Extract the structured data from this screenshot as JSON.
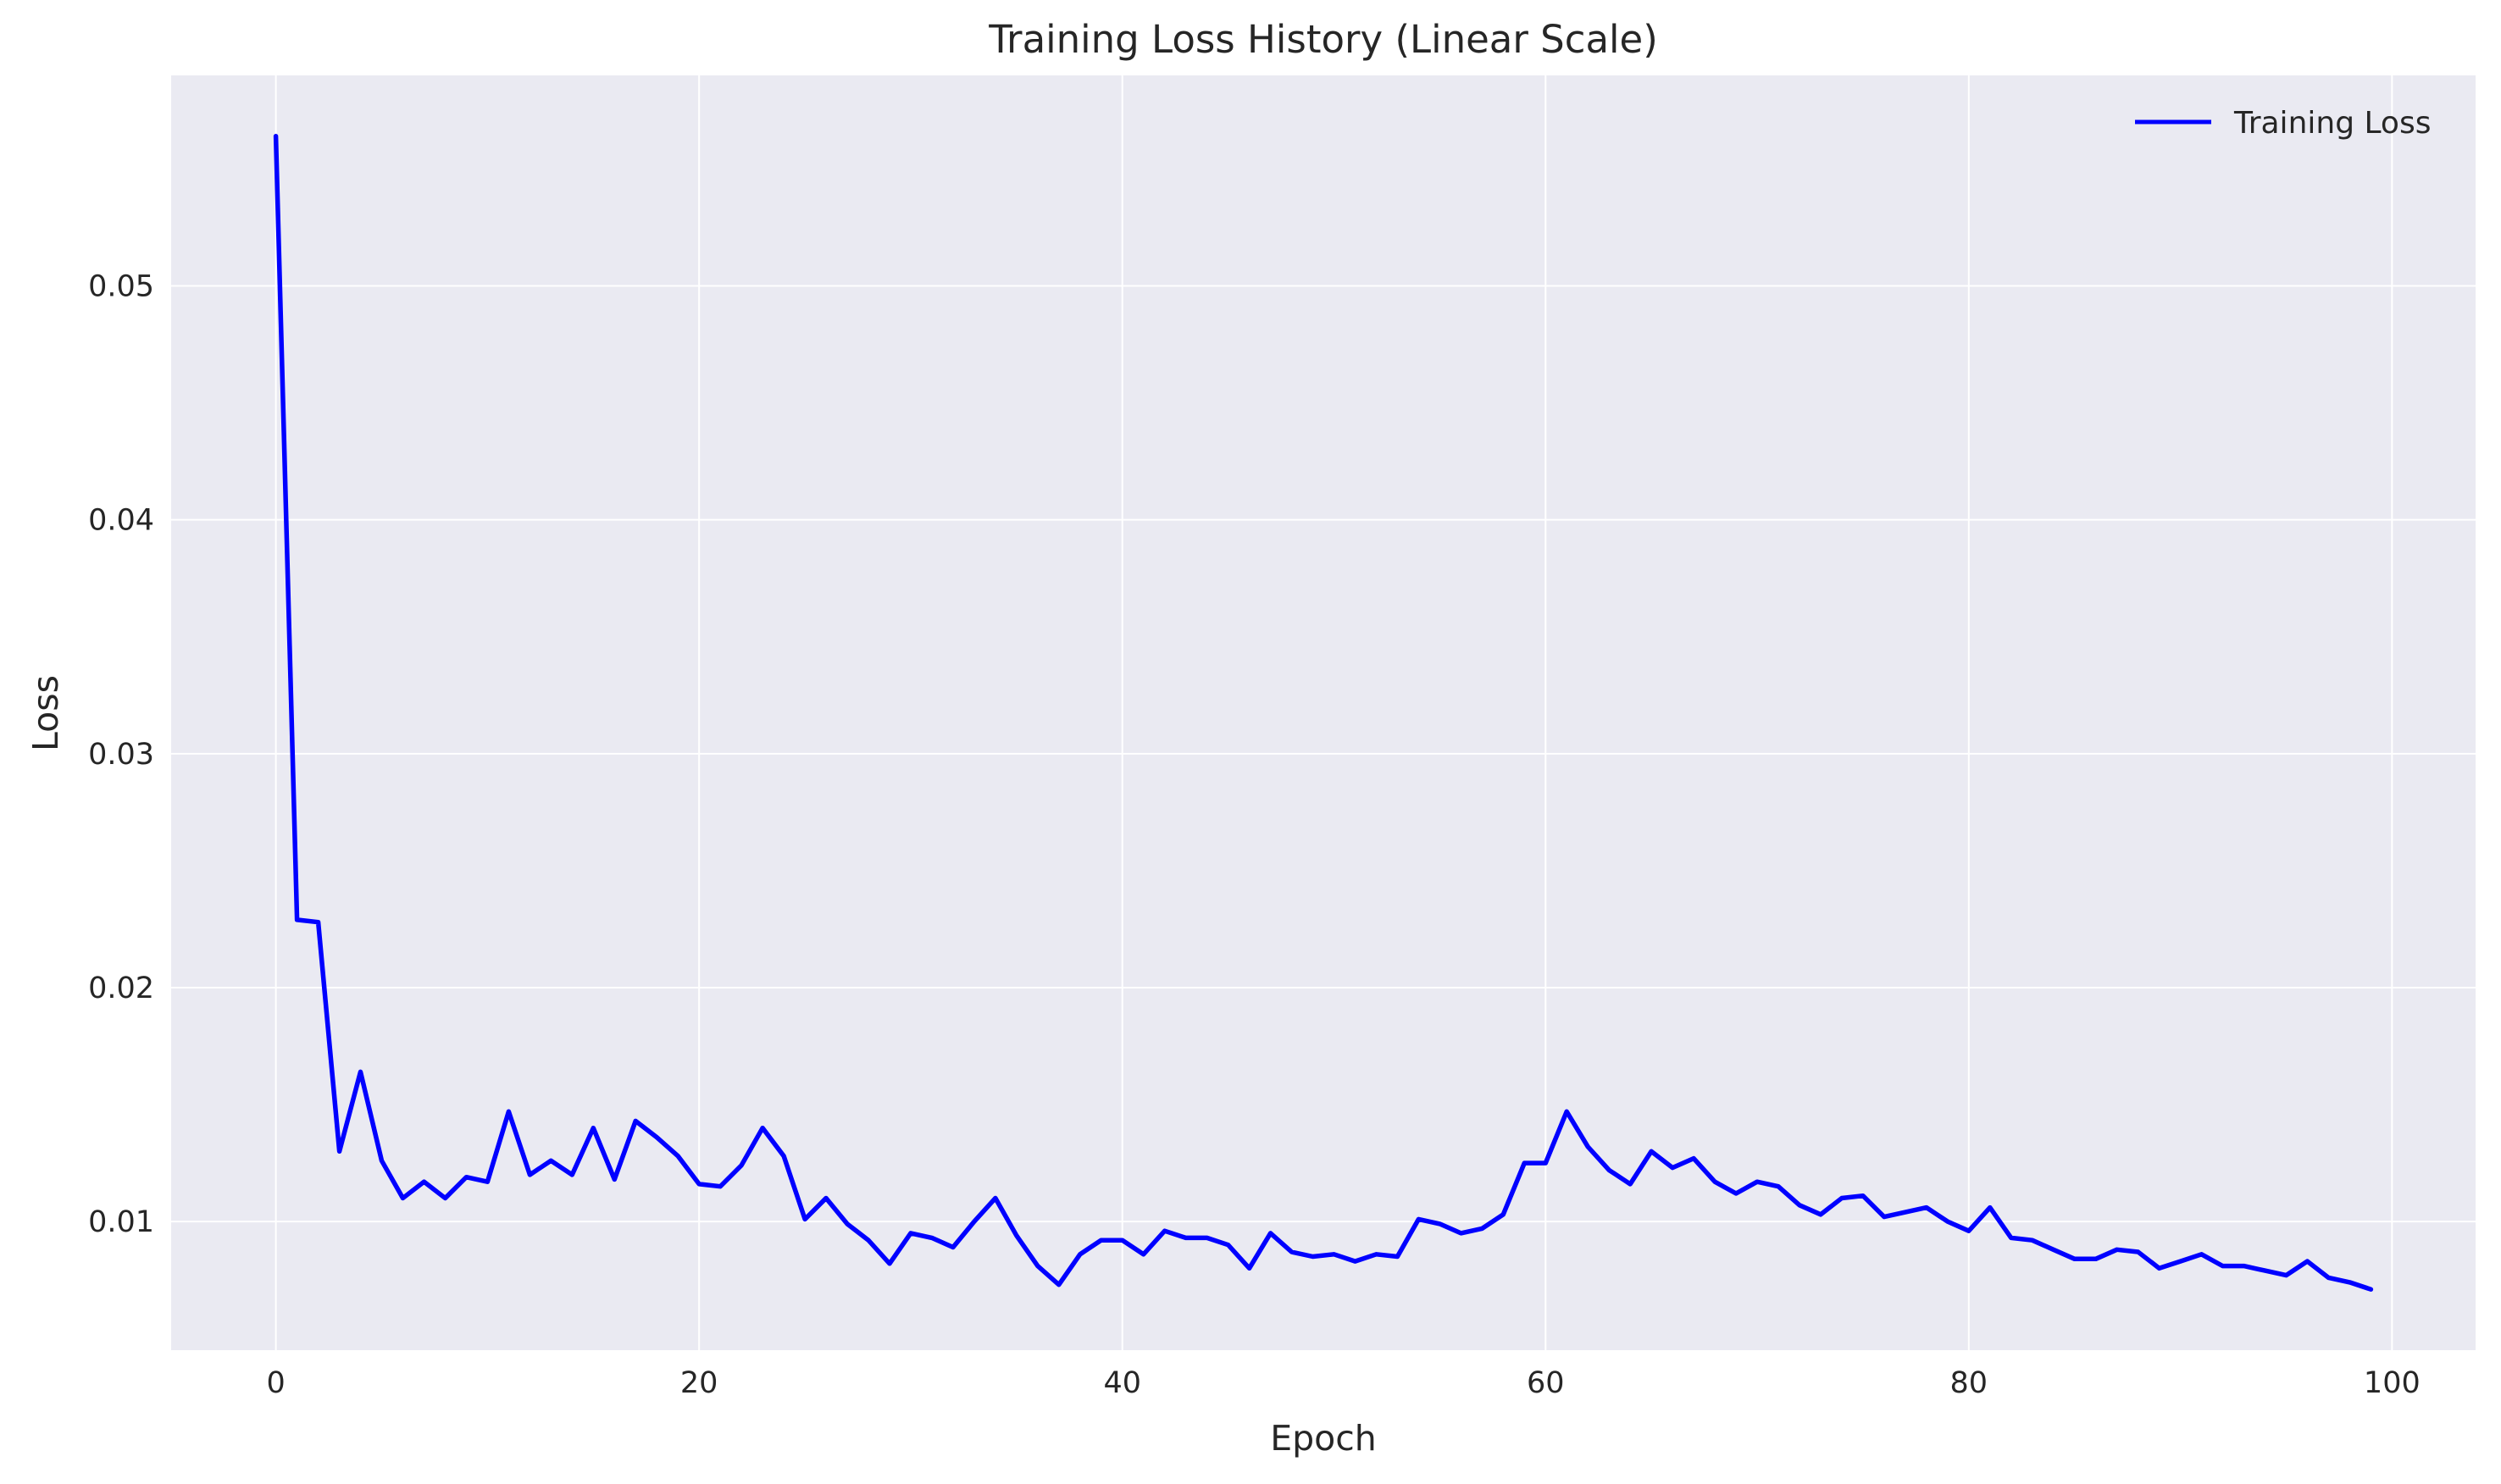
{
  "chart_data": {
    "type": "line",
    "title": "Training Loss History (Linear Scale)",
    "xlabel": "Epoch",
    "ylabel": "Loss",
    "xlim": [
      -4.95,
      103.95
    ],
    "ylim": [
      0.0045,
      0.059
    ],
    "xticks": [
      "0",
      "20",
      "40",
      "60",
      "80",
      "100"
    ],
    "xtick_values": [
      0,
      20,
      40,
      60,
      80,
      100
    ],
    "yticks": [
      "0.01",
      "0.02",
      "0.03",
      "0.04",
      "0.05"
    ],
    "ytick_values": [
      0.01,
      0.02,
      0.03,
      0.04,
      0.05
    ],
    "grid": true,
    "legend_position": "top-right",
    "series": [
      {
        "name": "Training Loss",
        "color": "#0000ff",
        "x": [
          0,
          1,
          2,
          3,
          4,
          5,
          6,
          7,
          8,
          9,
          10,
          11,
          12,
          13,
          14,
          15,
          16,
          17,
          18,
          19,
          20,
          21,
          22,
          23,
          24,
          25,
          26,
          27,
          28,
          29,
          30,
          31,
          32,
          33,
          34,
          35,
          36,
          37,
          38,
          39,
          40,
          41,
          42,
          43,
          44,
          45,
          46,
          47,
          48,
          49,
          50,
          51,
          52,
          53,
          54,
          55,
          56,
          57,
          58,
          59,
          60,
          61,
          62,
          63,
          64,
          65,
          66,
          67,
          68,
          69,
          70,
          71,
          72,
          73,
          74,
          75,
          76,
          77,
          78,
          79,
          80,
          81,
          82,
          83,
          84,
          85,
          86,
          87,
          88,
          89,
          90,
          91,
          92,
          93,
          94,
          95,
          96,
          97,
          98,
          99
        ],
        "values": [
          0.0564,
          0.0229,
          0.0228,
          0.013,
          0.0164,
          0.0126,
          0.011,
          0.0117,
          0.011,
          0.0119,
          0.0117,
          0.0147,
          0.012,
          0.0126,
          0.012,
          0.014,
          0.0118,
          0.0143,
          0.0136,
          0.0128,
          0.0116,
          0.0115,
          0.0124,
          0.014,
          0.0128,
          0.0101,
          0.011,
          0.0099,
          0.0092,
          0.0082,
          0.0095,
          0.0093,
          0.0089,
          0.01,
          0.011,
          0.0094,
          0.0081,
          0.0073,
          0.0086,
          0.0092,
          0.0092,
          0.0086,
          0.0096,
          0.0093,
          0.0093,
          0.009,
          0.008,
          0.0095,
          0.0087,
          0.0085,
          0.0086,
          0.0083,
          0.0086,
          0.0085,
          0.0101,
          0.0099,
          0.0095,
          0.0097,
          0.0103,
          0.0125,
          0.0125,
          0.0147,
          0.0132,
          0.0122,
          0.0116,
          0.013,
          0.0123,
          0.0127,
          0.0117,
          0.0112,
          0.0117,
          0.0115,
          0.0107,
          0.0103,
          0.011,
          0.0111,
          0.0102,
          0.0104,
          0.0106,
          0.01,
          0.0096,
          0.0106,
          0.0093,
          0.0092,
          0.0088,
          0.0084,
          0.0084,
          0.0088,
          0.0087,
          0.008,
          0.0083,
          0.0086,
          0.0081,
          0.0081,
          0.0079,
          0.0077,
          0.0083,
          0.0076,
          0.0074,
          0.0071
        ]
      }
    ]
  }
}
